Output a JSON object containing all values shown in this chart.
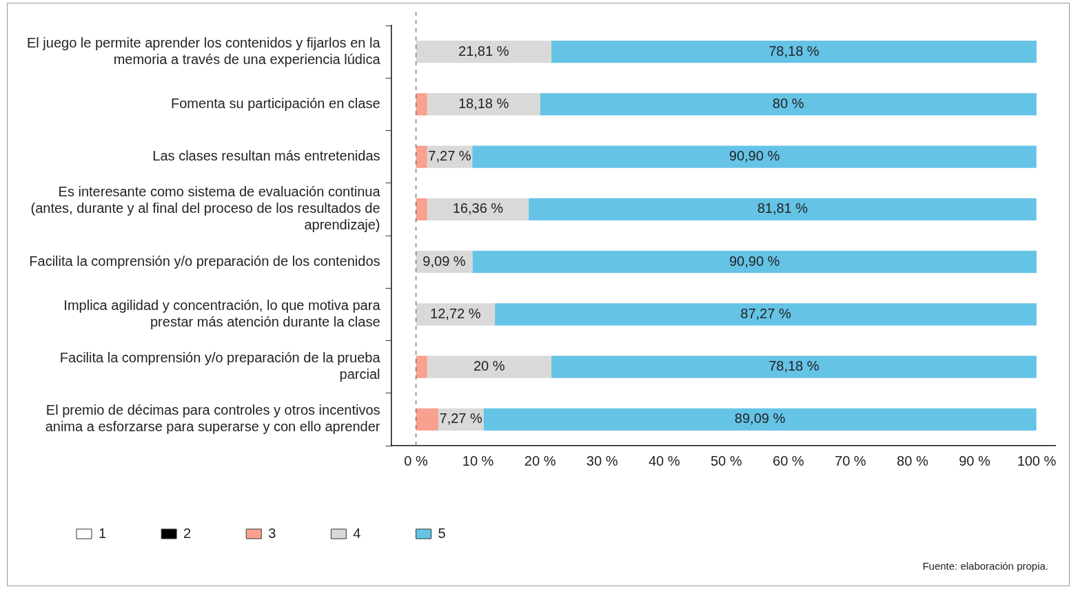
{
  "chart_data": {
    "type": "bar",
    "orientation": "horizontal",
    "stacked": true,
    "categories": [
      "El juego le permite aprender los contenidos y fijarlos en la memoria a través de una experiencia lúdica",
      "Fomenta su participación en clase",
      "Las clases resultan más entretenidas",
      "Es interesante como sistema de evaluación continua (antes, durante y al final del proceso de los resultados de aprendizaje)",
      "Facilita la comprensión y/o preparación de los contenidos",
      "Implica agilidad y concentración, lo que motiva para prestar más atención durante la clase",
      "Facilita la comprensión y/o preparación de la prueba parcial",
      "El premio de décimas para controles y otros incentivos anima a esforzarse para superarse y con ello aprender"
    ],
    "series": [
      {
        "name": "1",
        "color": "#ffffff",
        "values": [
          0,
          0,
          0,
          0,
          0,
          0,
          0,
          0
        ]
      },
      {
        "name": "2",
        "color": "#000000",
        "values": [
          0,
          0,
          0,
          0,
          0,
          0,
          0,
          0
        ]
      },
      {
        "name": "3",
        "color": "#f9a090",
        "values": [
          0,
          1.8,
          1.8,
          1.8,
          0,
          0,
          1.8,
          3.6
        ]
      },
      {
        "name": "4",
        "color": "#d9d9d9",
        "values": [
          21.81,
          18.18,
          7.27,
          16.36,
          9.09,
          12.72,
          20,
          7.27
        ],
        "value_labels": [
          "21,81 %",
          "18,18 %",
          "7,27 %",
          "16,36 %",
          "9,09 %",
          "12,72 %",
          "20 %",
          "7,27 %"
        ]
      },
      {
        "name": "5",
        "color": "#65c3e6",
        "values": [
          78.18,
          80,
          90.9,
          81.81,
          90.9,
          87.27,
          78.18,
          89.09
        ],
        "value_labels": [
          "78,18 %",
          "80 %",
          "90,90 %",
          "81,81 %",
          "90,90 %",
          "87,27 %",
          "78,18 %",
          "89,09 %"
        ]
      }
    ],
    "xlim": [
      -4,
      103
    ],
    "xticks": [
      {
        "value": 0,
        "label": "0 %"
      },
      {
        "value": 10,
        "label": "10 %"
      },
      {
        "value": 20,
        "label": "20 %"
      },
      {
        "value": 30,
        "label": "30 %"
      },
      {
        "value": 40,
        "label": "40 %"
      },
      {
        "value": 50,
        "label": "50 %"
      },
      {
        "value": 60,
        "label": "60 %"
      },
      {
        "value": 70,
        "label": "70 %"
      },
      {
        "value": 80,
        "label": "80 %"
      },
      {
        "value": 90,
        "label": "90 %"
      },
      {
        "value": 100,
        "label": "100 %"
      }
    ],
    "ref_lines": [
      {
        "axis": "x",
        "value": 0,
        "line_style": "dashed",
        "color": "#666666"
      }
    ],
    "grid": false,
    "legend": "bottom",
    "annotations": [
      "Fuente: elaboración propia."
    ]
  }
}
